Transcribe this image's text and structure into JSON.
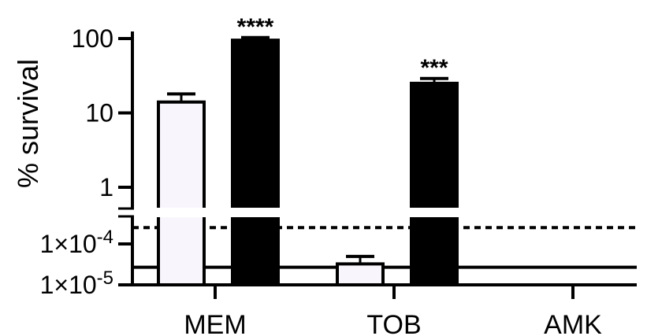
{
  "chart_data": {
    "type": "bar",
    "ylabel": "% survival",
    "yscale": "log",
    "axis_break": true,
    "categories": [
      "MEM",
      "TOB",
      "AMK"
    ],
    "upper_ticks": [
      {
        "value": 100,
        "label": "100"
      },
      {
        "value": 10,
        "label": "10"
      },
      {
        "value": 1,
        "label": "1"
      }
    ],
    "lower_ticks": [
      {
        "value": 0.0001,
        "base": "1×10",
        "exp": "-4"
      },
      {
        "value": 1e-05,
        "base": "1×10",
        "exp": "-5"
      }
    ],
    "series": [
      {
        "fill": "#f8f6fc",
        "values": [
          14,
          3.25e-05,
          null
        ],
        "errors": [
          4,
          1.7e-05,
          null
        ]
      },
      {
        "fill": "#000000",
        "values": [
          95,
          25,
          null
        ],
        "errors": [
          8,
          4,
          null
        ]
      }
    ],
    "reference_lines": [
      {
        "value": 0.00025,
        "style": "dotted"
      },
      {
        "value": 2.7e-05,
        "style": "solid"
      }
    ],
    "significance": [
      {
        "category": "MEM",
        "series": 1,
        "label": "****"
      },
      {
        "category": "TOB",
        "series": 1,
        "label": "***"
      }
    ],
    "grid": false,
    "legend": "none"
  }
}
